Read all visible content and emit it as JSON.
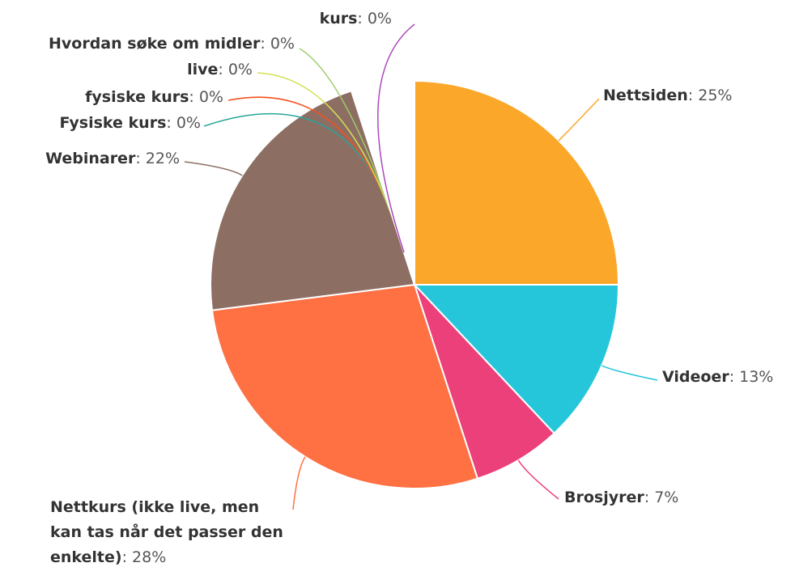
{
  "chart_data": {
    "type": "pie",
    "categories": [
      "Nettsiden",
      "Videoer",
      "Brosjyrer",
      "Nettkurs (ikke live, men kan tas når det passer den enkelte)",
      "Webinarer",
      "Fysiske kurs",
      "fysiske kurs",
      "live",
      "Hvordan søke om midler",
      "kurs"
    ],
    "values": [
      25,
      13,
      7,
      28,
      22,
      0,
      0,
      0,
      0,
      0
    ],
    "value_labels": [
      ": 25%",
      ": 13%",
      ": 7%",
      ": 28%",
      ": 22%",
      ": 0%",
      ": 0%",
      ": 0%",
      ": 0%",
      ": 0%"
    ],
    "colors": [
      "#fba72a",
      "#26c6da",
      "#ec407a",
      "#ff7043",
      "#8d6e63",
      "#26a69a",
      "#f4511e",
      "#d4e157",
      "#9ccc65",
      "#ab47bc"
    ]
  }
}
